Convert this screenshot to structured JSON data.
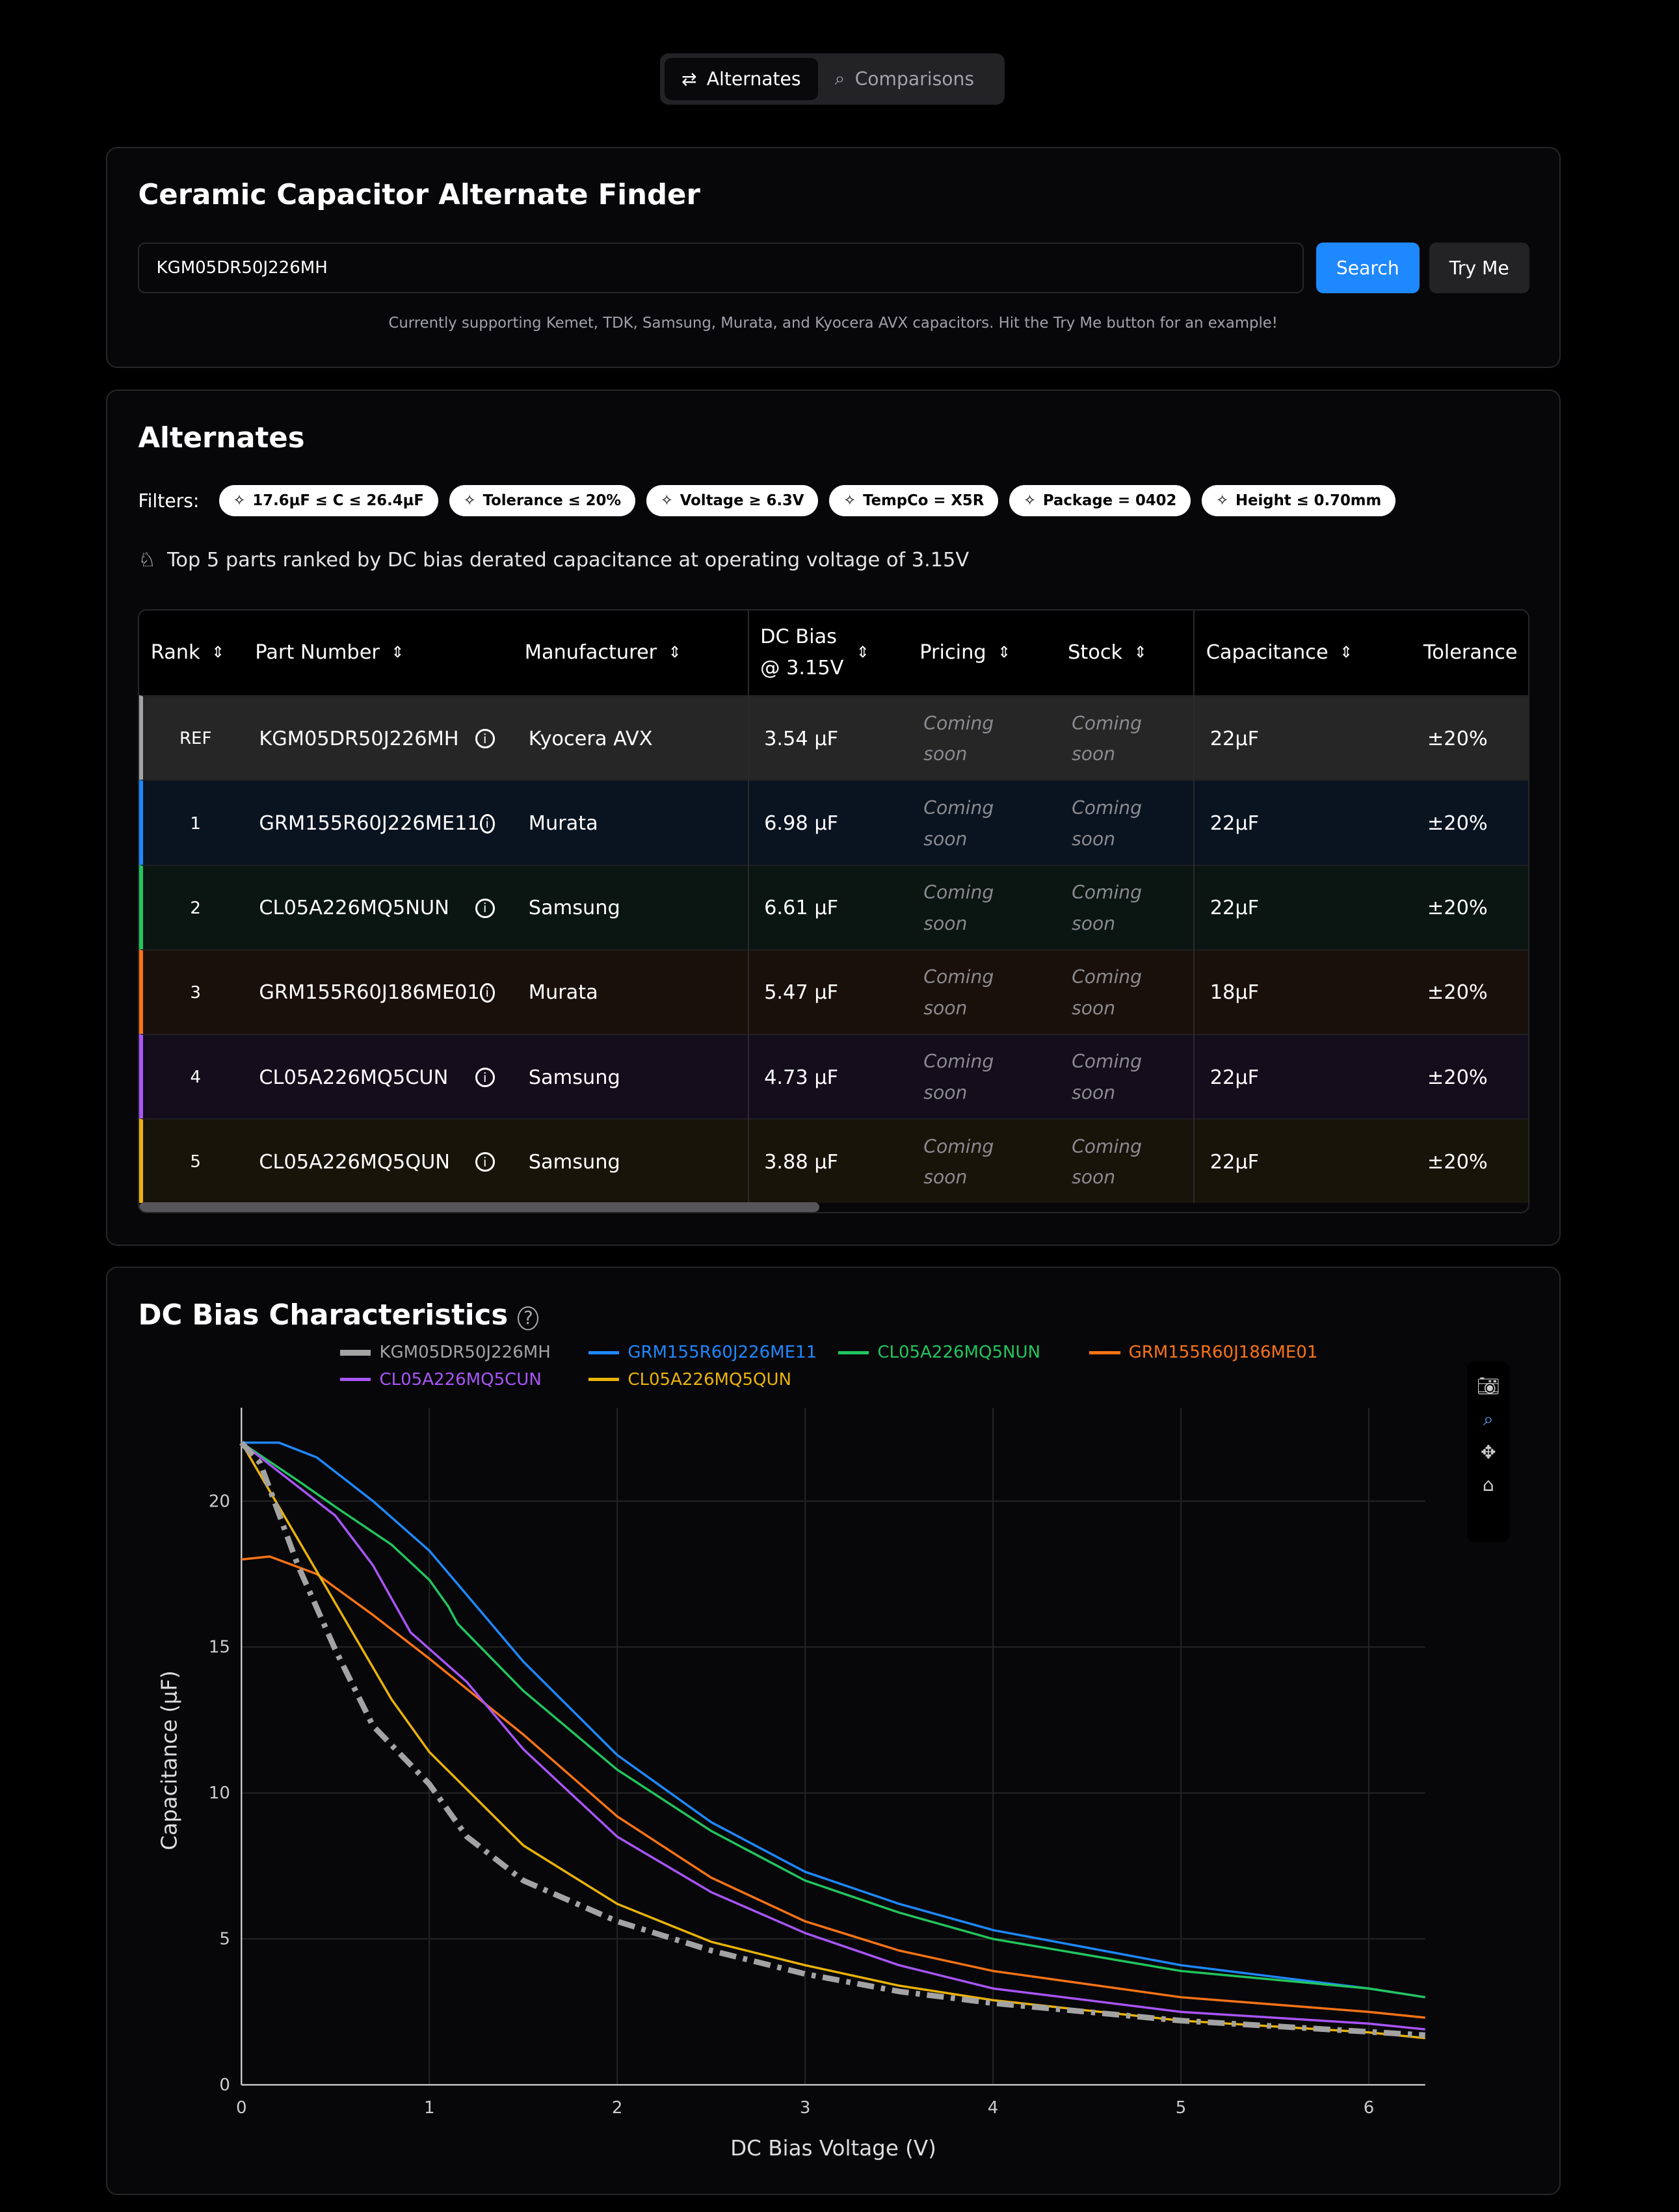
{
  "tabs": [
    {
      "label": "Alternates",
      "icon": "swap-icon"
    },
    {
      "label": "Comparisons",
      "icon": "search-icon"
    }
  ],
  "finder": {
    "title": "Ceramic Capacitor Alternate Finder",
    "input_value": "KGM05DR50J226MH",
    "search_label": "Search",
    "tryme_label": "Try Me",
    "hint": "Currently supporting Kemet, TDK, Samsung, Murata, and Kyocera AVX capacitors. Hit the Try Me button for an example!"
  },
  "alternates": {
    "title": "Alternates",
    "filters_label": "Filters:",
    "filters": [
      "17.6µF ≤ C ≤ 26.4µF",
      "Tolerance ≤ 20%",
      "Voltage ≥ 6.3V",
      "TempCo = X5R",
      "Package = 0402",
      "Height ≤ 0.70mm"
    ],
    "rank_info": "Top 5 parts ranked by DC bias derated capacitance at operating voltage of 3.15V",
    "columns": [
      "Rank",
      "Part Number",
      "Manufacturer",
      "DC Bias @ 3.15V",
      "Pricing",
      "Stock",
      "Capacitance",
      "Tolerance"
    ],
    "coming": "Coming",
    "soon": "soon",
    "rows": [
      {
        "rank": "REF",
        "part": "KGM05DR50J226MH",
        "mfr": "Kyocera AVX",
        "dcbias": "3.54 µF",
        "cap": "22µF",
        "tol": "±20%",
        "color": "#a3a3a3",
        "bg": "#262626"
      },
      {
        "rank": "1",
        "part": "GRM155R60J226ME11",
        "mfr": "Murata",
        "dcbias": "6.98 µF",
        "cap": "22µF",
        "tol": "±20%",
        "color": "#1e88ff",
        "bg": "#0a1320"
      },
      {
        "rank": "2",
        "part": "CL05A226MQ5NUN",
        "mfr": "Samsung",
        "dcbias": "6.61 µF",
        "cap": "22µF",
        "tol": "±20%",
        "color": "#22c55e",
        "bg": "#0b1511"
      },
      {
        "rank": "3",
        "part": "GRM155R60J186ME01",
        "mfr": "Murata",
        "dcbias": "5.47 µF",
        "cap": "18µF",
        "tol": "±20%",
        "color": "#f97316",
        "bg": "#1a100b"
      },
      {
        "rank": "4",
        "part": "CL05A226MQ5CUN",
        "mfr": "Samsung",
        "dcbias": "4.73 µF",
        "cap": "22µF",
        "tol": "±20%",
        "color": "#a855f7",
        "bg": "#130d1c"
      },
      {
        "rank": "5",
        "part": "CL05A226MQ5QUN",
        "mfr": "Samsung",
        "dcbias": "3.88 µF",
        "cap": "22µF",
        "tol": "±20%",
        "color": "#eab308",
        "bg": "#17140a"
      }
    ]
  },
  "chart_data": {
    "type": "line",
    "title": "DC Bias Characteristics",
    "xlabel": "DC Bias Voltage (V)",
    "ylabel": "Capacitance (µF)",
    "xlim": [
      0,
      6.3
    ],
    "ylim": [
      0,
      23.2
    ],
    "xticks": [
      0,
      1,
      2,
      3,
      4,
      5,
      6
    ],
    "yticks": [
      0,
      5,
      10,
      15,
      20
    ],
    "grid": true,
    "legend": "top",
    "series": [
      {
        "name": "KGM05DR50J226MH",
        "color": "#a3a3a3",
        "dash": true,
        "x": [
          0,
          0.1,
          0.3,
          0.5,
          0.7,
          1,
          1.2,
          1.5,
          2,
          2.5,
          3,
          3.5,
          4,
          5,
          6.3
        ],
        "y": [
          22,
          21.3,
          17.8,
          14.9,
          12.3,
          10.3,
          8.5,
          7,
          5.6,
          4.6,
          3.8,
          3.2,
          2.8,
          2.2,
          1.7
        ]
      },
      {
        "name": "GRM155R60J226ME11",
        "color": "#1e88ff",
        "x": [
          0,
          0.2,
          0.4,
          0.7,
          1,
          1.5,
          2,
          2.5,
          3,
          3.5,
          4,
          5,
          6,
          6.3
        ],
        "y": [
          22,
          22,
          21.5,
          20,
          18.3,
          14.5,
          11.3,
          9,
          7.3,
          6.2,
          5.3,
          4.1,
          3.3,
          3.0
        ]
      },
      {
        "name": "CL05A226MQ5NUN",
        "color": "#22c55e",
        "x": [
          0,
          0.3,
          0.5,
          0.8,
          1,
          1.1,
          1.15,
          1.5,
          2,
          2.5,
          3,
          3.5,
          4,
          5,
          6,
          6.3
        ],
        "y": [
          22,
          20.7,
          19.8,
          18.5,
          17.3,
          16.4,
          15.8,
          13.5,
          10.8,
          8.7,
          7,
          5.9,
          5,
          3.9,
          3.3,
          3
        ]
      },
      {
        "name": "GRM155R60J186ME01",
        "color": "#f97316",
        "x": [
          0,
          0.15,
          0.4,
          0.7,
          1,
          1.5,
          2,
          2.5,
          3,
          3.5,
          4,
          5,
          6,
          6.3
        ],
        "y": [
          18,
          18.1,
          17.5,
          16.1,
          14.6,
          12,
          9.2,
          7.1,
          5.6,
          4.6,
          3.9,
          3,
          2.5,
          2.3
        ]
      },
      {
        "name": "CL05A226MQ5CUN",
        "color": "#a855f7",
        "x": [
          0,
          0.2,
          0.5,
          0.7,
          0.9,
          1.2,
          1.5,
          2,
          2.5,
          3,
          3.5,
          4,
          5,
          6,
          6.3
        ],
        "y": [
          22,
          21,
          19.5,
          17.8,
          15.5,
          13.8,
          11.5,
          8.5,
          6.6,
          5.2,
          4.1,
          3.3,
          2.5,
          2.1,
          1.9
        ]
      },
      {
        "name": "CL05A226MQ5QUN",
        "color": "#eab308",
        "x": [
          0,
          0.2,
          0.5,
          0.8,
          1,
          1.5,
          2,
          2.5,
          3,
          3.5,
          4,
          5,
          6,
          6.3
        ],
        "y": [
          22,
          19.8,
          16.5,
          13.2,
          11.4,
          8.2,
          6.2,
          4.9,
          4.1,
          3.4,
          2.9,
          2.2,
          1.8,
          1.6
        ]
      }
    ]
  }
}
